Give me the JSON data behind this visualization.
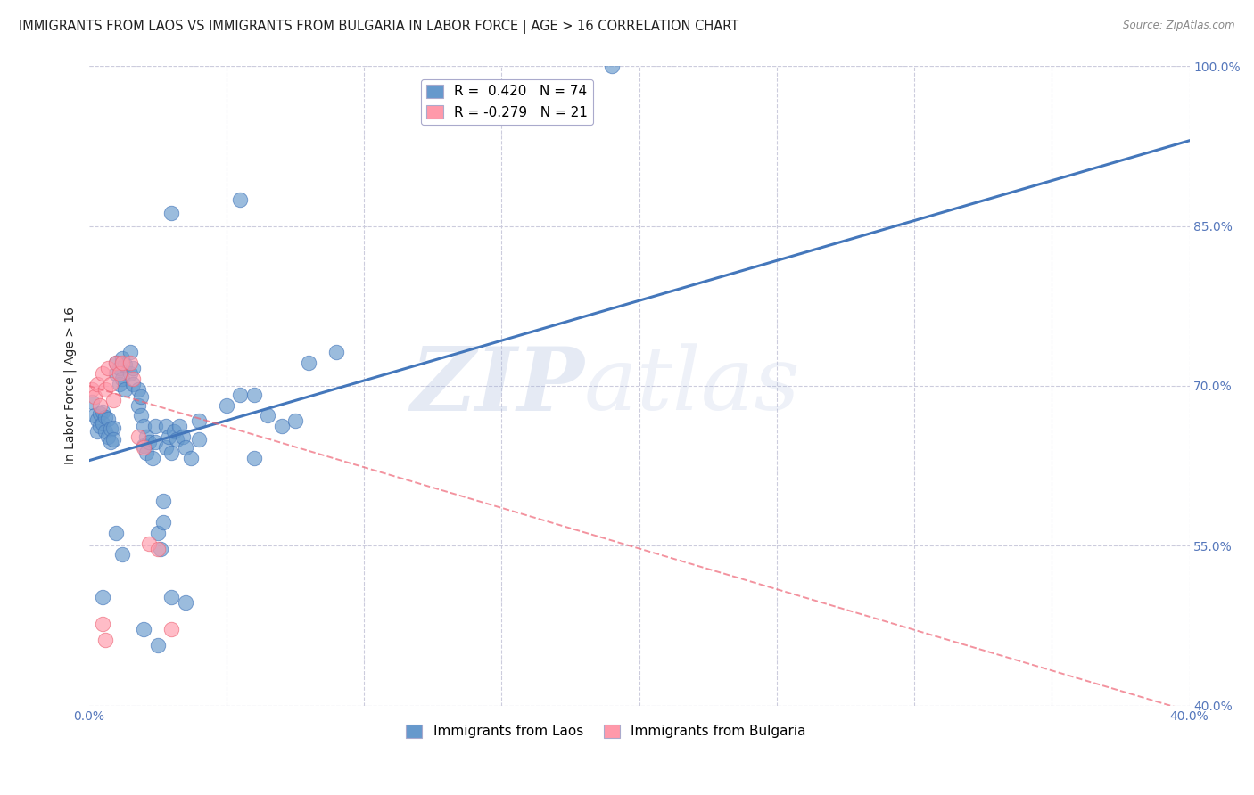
{
  "title": "IMMIGRANTS FROM LAOS VS IMMIGRANTS FROM BULGARIA IN LABOR FORCE | AGE > 16 CORRELATION CHART",
  "source": "Source: ZipAtlas.com",
  "ylabel": "In Labor Force | Age > 16",
  "xlim": [
    0.0,
    0.4
  ],
  "ylim": [
    0.4,
    1.0
  ],
  "xticks": [
    0.0,
    0.05,
    0.1,
    0.15,
    0.2,
    0.25,
    0.3,
    0.35,
    0.4
  ],
  "xticklabels": [
    "0.0%",
    "",
    "",
    "",
    "",
    "",
    "",
    "",
    "40.0%"
  ],
  "yticks": [
    0.4,
    0.55,
    0.7,
    0.85,
    1.0
  ],
  "yticklabels": [
    "40.0%",
    "55.0%",
    "70.0%",
    "85.0%",
    "100.0%"
  ],
  "laos_R": 0.42,
  "laos_N": 74,
  "bulgaria_R": -0.279,
  "bulgaria_N": 21,
  "laos_color": "#6699CC",
  "laos_color_dark": "#4477BB",
  "bulgaria_color": "#FF99AA",
  "bulgaria_color_dark": "#EE6677",
  "laos_scatter": [
    [
      0.001,
      0.685
    ],
    [
      0.002,
      0.672
    ],
    [
      0.003,
      0.668
    ],
    [
      0.003,
      0.657
    ],
    [
      0.004,
      0.674
    ],
    [
      0.004,
      0.662
    ],
    [
      0.005,
      0.676
    ],
    [
      0.005,
      0.665
    ],
    [
      0.006,
      0.671
    ],
    [
      0.006,
      0.657
    ],
    [
      0.007,
      0.669
    ],
    [
      0.007,
      0.652
    ],
    [
      0.008,
      0.66
    ],
    [
      0.008,
      0.647
    ],
    [
      0.009,
      0.661
    ],
    [
      0.009,
      0.65
    ],
    [
      0.01,
      0.722
    ],
    [
      0.01,
      0.712
    ],
    [
      0.011,
      0.717
    ],
    [
      0.011,
      0.702
    ],
    [
      0.012,
      0.726
    ],
    [
      0.012,
      0.707
    ],
    [
      0.013,
      0.72
    ],
    [
      0.013,
      0.697
    ],
    [
      0.015,
      0.732
    ],
    [
      0.015,
      0.712
    ],
    [
      0.016,
      0.717
    ],
    [
      0.016,
      0.702
    ],
    [
      0.018,
      0.697
    ],
    [
      0.018,
      0.682
    ],
    [
      0.019,
      0.69
    ],
    [
      0.019,
      0.672
    ],
    [
      0.02,
      0.662
    ],
    [
      0.02,
      0.644
    ],
    [
      0.021,
      0.652
    ],
    [
      0.021,
      0.637
    ],
    [
      0.022,
      0.647
    ],
    [
      0.023,
      0.632
    ],
    [
      0.024,
      0.662
    ],
    [
      0.024,
      0.647
    ],
    [
      0.025,
      0.562
    ],
    [
      0.026,
      0.547
    ],
    [
      0.027,
      0.592
    ],
    [
      0.027,
      0.572
    ],
    [
      0.028,
      0.662
    ],
    [
      0.028,
      0.642
    ],
    [
      0.029,
      0.652
    ],
    [
      0.03,
      0.637
    ],
    [
      0.031,
      0.657
    ],
    [
      0.032,
      0.65
    ],
    [
      0.033,
      0.662
    ],
    [
      0.034,
      0.652
    ],
    [
      0.035,
      0.642
    ],
    [
      0.037,
      0.632
    ],
    [
      0.04,
      0.667
    ],
    [
      0.04,
      0.65
    ],
    [
      0.05,
      0.682
    ],
    [
      0.055,
      0.692
    ],
    [
      0.06,
      0.692
    ],
    [
      0.06,
      0.632
    ],
    [
      0.065,
      0.672
    ],
    [
      0.07,
      0.662
    ],
    [
      0.075,
      0.667
    ],
    [
      0.005,
      0.502
    ],
    [
      0.01,
      0.562
    ],
    [
      0.012,
      0.542
    ],
    [
      0.02,
      0.472
    ],
    [
      0.025,
      0.457
    ],
    [
      0.03,
      0.502
    ],
    [
      0.035,
      0.497
    ],
    [
      0.08,
      0.722
    ],
    [
      0.09,
      0.732
    ],
    [
      0.03,
      0.862
    ],
    [
      0.19,
      1.0
    ],
    [
      0.055,
      0.875
    ]
  ],
  "bulgaria_scatter": [
    [
      0.001,
      0.697
    ],
    [
      0.002,
      0.69
    ],
    [
      0.003,
      0.702
    ],
    [
      0.004,
      0.682
    ],
    [
      0.005,
      0.712
    ],
    [
      0.006,
      0.697
    ],
    [
      0.007,
      0.717
    ],
    [
      0.008,
      0.702
    ],
    [
      0.009,
      0.687
    ],
    [
      0.01,
      0.722
    ],
    [
      0.011,
      0.712
    ],
    [
      0.012,
      0.722
    ],
    [
      0.015,
      0.722
    ],
    [
      0.016,
      0.707
    ],
    [
      0.018,
      0.652
    ],
    [
      0.02,
      0.642
    ],
    [
      0.022,
      0.552
    ],
    [
      0.025,
      0.547
    ],
    [
      0.03,
      0.472
    ],
    [
      0.005,
      0.477
    ],
    [
      0.006,
      0.462
    ]
  ],
  "laos_trend_x": [
    0.0,
    0.4
  ],
  "laos_trend_y": [
    0.63,
    0.93
  ],
  "bulgaria_trend_x": [
    0.0,
    0.4
  ],
  "bulgaria_trend_y": [
    0.7,
    0.395
  ],
  "watermark_zip": "ZIP",
  "watermark_atlas": "atlas",
  "background_color": "#FFFFFF",
  "grid_color": "#CCCCDD",
  "axis_color": "#5577BB",
  "title_color": "#222222",
  "source_color": "#888888",
  "title_fontsize": 10.5,
  "ylabel_fontsize": 10,
  "tick_fontsize": 10,
  "legend_fontsize": 11
}
